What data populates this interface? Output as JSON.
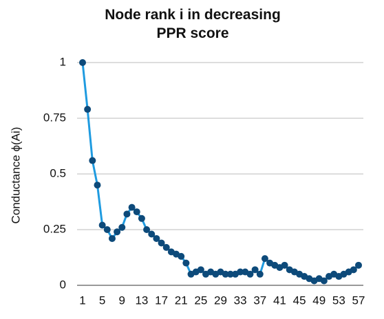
{
  "chart_data": {
    "type": "line",
    "title": "Node rank i in decreasing PPR score",
    "y_label": "Conductance ϕ(Ai)",
    "categories": [
      "1",
      null,
      null,
      null,
      "5",
      null,
      null,
      null,
      "9",
      null,
      null,
      null,
      "13",
      null,
      null,
      null,
      "17",
      null,
      null,
      null,
      "21",
      null,
      null,
      null,
      "25",
      null,
      null,
      null,
      "29",
      null,
      null,
      null,
      "33",
      null,
      null,
      null,
      "37",
      null,
      null,
      null,
      "41",
      null,
      null,
      null,
      "45",
      null,
      null,
      null,
      "49",
      null,
      null,
      null,
      "53",
      null,
      null,
      null,
      "57"
    ],
    "series": [
      {
        "name": "Conductance",
        "color": "#1f9be0",
        "marker_color": "#0d4a7a",
        "values": [
          1.0,
          0.79,
          0.56,
          0.45,
          0.27,
          0.25,
          0.21,
          0.24,
          0.26,
          0.32,
          0.35,
          0.33,
          0.3,
          0.25,
          0.23,
          0.21,
          0.19,
          0.17,
          0.15,
          0.14,
          0.13,
          0.1,
          0.05,
          0.06,
          0.07,
          0.05,
          0.06,
          0.05,
          0.06,
          0.05,
          0.05,
          0.05,
          0.06,
          0.06,
          0.05,
          0.07,
          0.05,
          0.12,
          0.1,
          0.09,
          0.08,
          0.09,
          0.07,
          0.06,
          0.05,
          0.04,
          0.03,
          0.02,
          0.03,
          0.02,
          0.04,
          0.05,
          0.04,
          0.05,
          0.06,
          0.07,
          0.09
        ]
      }
    ],
    "ylim": [
      0,
      1
    ],
    "yticks": [
      0,
      0.25,
      0.5,
      0.75,
      1
    ],
    "grid": true
  }
}
